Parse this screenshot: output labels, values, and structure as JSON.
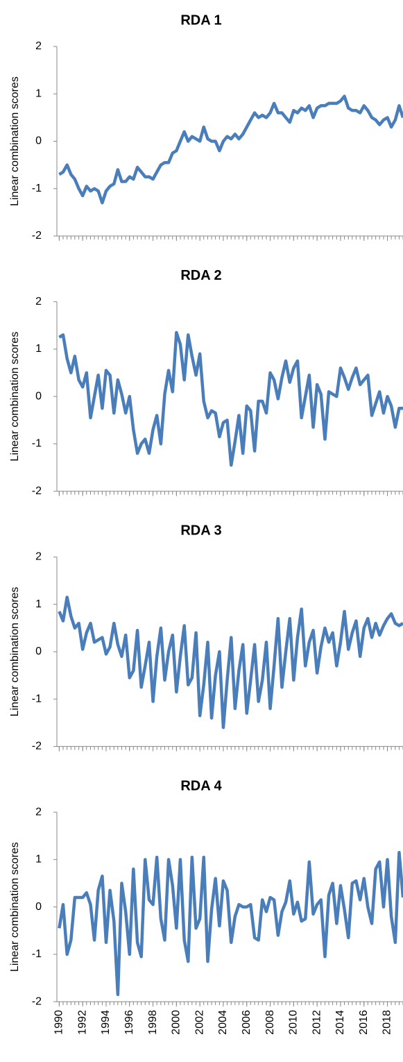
{
  "chart_data": {
    "type": "line",
    "ylabel": "Linear combination scores",
    "x": [
      1990,
      1990.33,
      1990.67,
      1991,
      1991.33,
      1991.67,
      1992,
      1992.33,
      1992.67,
      1993,
      1993.33,
      1993.67,
      1994,
      1994.33,
      1994.67,
      1995,
      1995.33,
      1995.67,
      1996,
      1996.33,
      1996.67,
      1997,
      1997.33,
      1997.67,
      1998,
      1998.33,
      1998.67,
      1999,
      1999.33,
      1999.67,
      2000,
      2000.33,
      2000.67,
      2001,
      2001.33,
      2001.67,
      2002,
      2002.33,
      2002.67,
      2003,
      2003.33,
      2003.67,
      2004,
      2004.33,
      2004.67,
      2005,
      2005.33,
      2005.67,
      2006,
      2006.33,
      2006.67,
      2007,
      2007.33,
      2007.67,
      2008,
      2008.33,
      2008.67,
      2009,
      2009.33,
      2009.67,
      2010,
      2010.33,
      2010.67,
      2011,
      2011.33,
      2011.67,
      2012,
      2012.33,
      2012.67,
      2013,
      2013.33,
      2013.67,
      2014,
      2014.33,
      2014.67,
      2015,
      2015.33,
      2015.67,
      2016,
      2016.33,
      2016.67,
      2017,
      2017.33,
      2017.67,
      2018,
      2018.33,
      2018.67,
      2019,
      2019.33
    ],
    "xlim": [
      1989.8,
      2019.33
    ],
    "xticks": [
      1990,
      1992,
      1994,
      1996,
      1998,
      2000,
      2002,
      2004,
      2006,
      2008,
      2010,
      2012,
      2014,
      2016,
      2018
    ],
    "ylim": [
      -2,
      2
    ],
    "yticks": [
      -2,
      -1,
      0,
      1,
      2
    ],
    "series": [
      {
        "name": "RDA 1",
        "color": "#4a7ebb",
        "values": [
          -0.7,
          -0.65,
          -0.5,
          -0.7,
          -0.8,
          -1.0,
          -1.15,
          -0.95,
          -1.05,
          -1.0,
          -1.05,
          -1.3,
          -1.05,
          -0.95,
          -0.9,
          -0.6,
          -0.85,
          -0.85,
          -0.75,
          -0.8,
          -0.55,
          -0.65,
          -0.75,
          -0.75,
          -0.8,
          -0.65,
          -0.5,
          -0.45,
          -0.45,
          -0.25,
          -0.2,
          0.0,
          0.2,
          0.0,
          0.1,
          0.05,
          0.0,
          0.3,
          0.05,
          0.0,
          0.0,
          -0.2,
          0.0,
          0.1,
          0.05,
          0.15,
          0.05,
          0.15,
          0.3,
          0.45,
          0.6,
          0.5,
          0.55,
          0.5,
          0.6,
          0.8,
          0.6,
          0.6,
          0.5,
          0.4,
          0.65,
          0.6,
          0.7,
          0.65,
          0.75,
          0.5,
          0.7,
          0.75,
          0.75,
          0.8,
          0.8,
          0.8,
          0.85,
          0.95,
          0.7,
          0.65,
          0.65,
          0.6,
          0.75,
          0.65,
          0.5,
          0.45,
          0.35,
          0.45,
          0.5,
          0.3,
          0.45,
          0.75,
          0.5
        ]
      },
      {
        "name": "RDA 2",
        "color": "#4a7ebb",
        "values": [
          1.25,
          1.3,
          0.8,
          0.5,
          0.85,
          0.35,
          0.2,
          0.5,
          -0.45,
          0.0,
          0.45,
          -0.25,
          0.55,
          0.45,
          -0.35,
          0.35,
          0.05,
          -0.35,
          0.0,
          -0.7,
          -1.2,
          -1.0,
          -0.9,
          -1.2,
          -0.7,
          -0.4,
          -1.0,
          0.05,
          0.55,
          0.1,
          1.35,
          1.1,
          0.35,
          1.3,
          0.85,
          0.45,
          0.9,
          -0.1,
          -0.45,
          -0.3,
          -0.35,
          -0.85,
          -0.55,
          -0.5,
          -1.45,
          -0.95,
          -0.4,
          -1.2,
          -0.2,
          -0.3,
          -1.15,
          -0.1,
          -0.1,
          -0.35,
          0.5,
          0.35,
          -0.05,
          0.4,
          0.75,
          0.3,
          0.6,
          0.75,
          -0.45,
          0.0,
          0.45,
          -0.65,
          0.25,
          0.05,
          -0.9,
          0.1,
          0.05,
          0.0,
          0.6,
          0.4,
          0.15,
          0.4,
          0.6,
          0.25,
          0.35,
          0.45,
          -0.4,
          -0.15,
          0.1,
          -0.35,
          0.0,
          -0.2,
          -0.65,
          -0.25,
          -0.25
        ]
      },
      {
        "name": "RDA 3",
        "color": "#4a7ebb",
        "values": [
          0.85,
          0.65,
          1.15,
          0.75,
          0.5,
          0.6,
          0.05,
          0.4,
          0.6,
          0.2,
          0.25,
          0.3,
          -0.05,
          0.1,
          0.6,
          0.15,
          -0.1,
          0.35,
          -0.55,
          -0.4,
          0.45,
          -0.75,
          -0.3,
          0.2,
          -1.05,
          -0.1,
          0.5,
          -0.6,
          0.0,
          0.35,
          -0.85,
          -0.1,
          0.55,
          -0.7,
          -0.55,
          0.4,
          -1.35,
          -0.7,
          0.2,
          -1.4,
          -0.5,
          0.0,
          -1.6,
          -0.6,
          0.3,
          -1.2,
          -0.4,
          0.15,
          -1.3,
          -0.6,
          0.15,
          -1.05,
          -0.6,
          0.2,
          -1.2,
          -0.3,
          0.7,
          -0.75,
          0.0,
          0.7,
          -0.6,
          0.3,
          0.9,
          -0.3,
          0.2,
          0.45,
          -0.45,
          0.1,
          0.5,
          0.2,
          0.4,
          -0.3,
          0.2,
          0.85,
          0.05,
          0.4,
          0.65,
          -0.1,
          0.5,
          0.7,
          0.3,
          0.6,
          0.35,
          0.55,
          0.7,
          0.8,
          0.6,
          0.55,
          0.6
        ]
      },
      {
        "name": "RDA 4",
        "color": "#4a7ebb",
        "values": [
          -0.45,
          0.05,
          -1.0,
          -0.7,
          0.2,
          0.2,
          0.2,
          0.3,
          0.05,
          -0.7,
          0.35,
          0.65,
          -0.75,
          0.35,
          -0.3,
          -1.85,
          0.5,
          -0.1,
          -1.0,
          0.8,
          -0.75,
          -1.05,
          1.0,
          0.15,
          0.05,
          1.05,
          -0.25,
          -0.7,
          1.0,
          0.45,
          -0.45,
          1.0,
          -0.7,
          -1.15,
          1.05,
          -0.45,
          -0.25,
          1.05,
          -1.15,
          -0.05,
          0.6,
          -0.4,
          0.55,
          0.35,
          -0.75,
          -0.2,
          0.05,
          0.0,
          0.0,
          0.05,
          -0.65,
          -0.7,
          0.15,
          -0.1,
          0.2,
          0.15,
          -0.6,
          -0.1,
          0.1,
          0.55,
          -0.15,
          0.1,
          -0.3,
          -0.25,
          0.95,
          -0.15,
          0.05,
          0.15,
          -1.05,
          0.25,
          0.5,
          -0.35,
          0.45,
          -0.05,
          -0.65,
          0.5,
          0.55,
          0.15,
          0.6,
          0.0,
          -0.35,
          0.8,
          0.95,
          0.0,
          1.0,
          -0.2,
          -0.75,
          1.15,
          0.2
        ]
      }
    ]
  }
}
